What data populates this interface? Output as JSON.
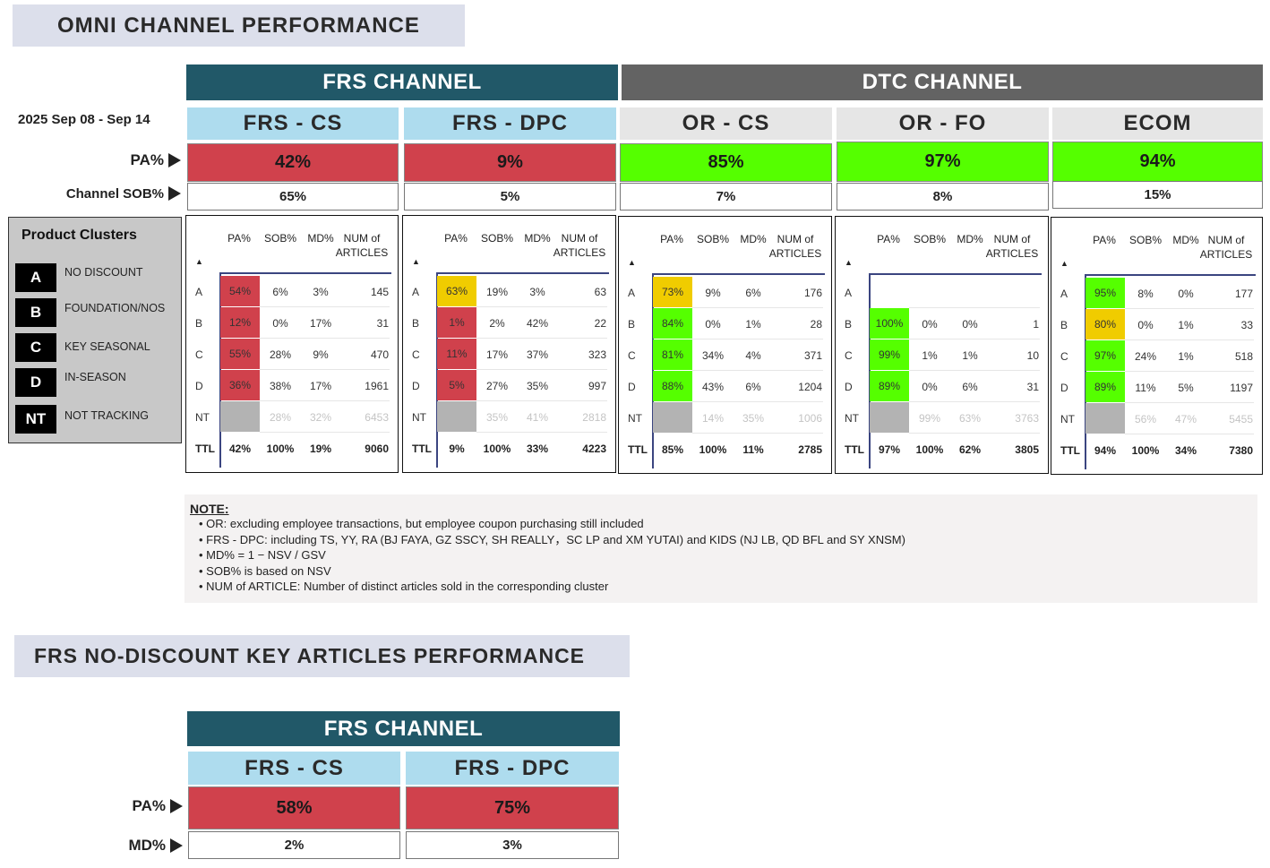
{
  "main_title": "OMNI CHANNEL PERFORMANCE",
  "date_range": "2025 Sep 08 - Sep 14",
  "row_labels": {
    "pa": "PA%",
    "sob": "Channel SOB%",
    "md": "MD%"
  },
  "colors": {
    "frs_header": "#215868",
    "dtc_header": "#636363",
    "frs_sub": "#aedcee",
    "dtc_sub": "#e6e6e6",
    "red": "#d0414c",
    "green": "#55ff00",
    "yellow": "#f0cc00",
    "grey": "#b3b3b3"
  },
  "channels": [
    {
      "name": "FRS CHANNEL"
    },
    {
      "name": "DTC CHANNEL"
    }
  ],
  "segments": [
    {
      "name": "FRS - CS",
      "pa": "42%",
      "sob": "65%"
    },
    {
      "name": "FRS - DPC",
      "pa": "9%",
      "sob": "5%"
    },
    {
      "name": "OR - CS",
      "pa": "85%",
      "sob": "7%"
    },
    {
      "name": "OR - FO",
      "pa": "97%",
      "sob": "8%"
    },
    {
      "name": "ECOM",
      "pa": "94%",
      "sob": "15%"
    }
  ],
  "table_headers": {
    "pa": "PA%",
    "sob": "SOB%",
    "md": "MD%",
    "num1": "NUM of",
    "num2": "ARTICLES",
    "sort": "▲"
  },
  "panels": [
    {
      "rows": [
        {
          "label": "A",
          "pa": "54%",
          "pa_color": "red",
          "sob": "6%",
          "md": "3%",
          "num": "145"
        },
        {
          "label": "B",
          "pa": "12%",
          "pa_color": "red",
          "sob": "0%",
          "md": "17%",
          "num": "31"
        },
        {
          "label": "C",
          "pa": "55%",
          "pa_color": "red",
          "sob": "28%",
          "md": "9%",
          "num": "470"
        },
        {
          "label": "D",
          "pa": "36%",
          "pa_color": "red",
          "sob": "38%",
          "md": "17%",
          "num": "1961"
        },
        {
          "label": "NT",
          "pa": "",
          "pa_color": "grey",
          "sob": "28%",
          "md": "32%",
          "num": "6453"
        }
      ],
      "ttl": {
        "label": "TTL",
        "pa": "42%",
        "sob": "100%",
        "md": "19%",
        "num": "9060"
      }
    },
    {
      "rows": [
        {
          "label": "A",
          "pa": "63%",
          "pa_color": "yellow",
          "sob": "19%",
          "md": "3%",
          "num": "63"
        },
        {
          "label": "B",
          "pa": "1%",
          "pa_color": "red",
          "sob": "2%",
          "md": "42%",
          "num": "22"
        },
        {
          "label": "C",
          "pa": "11%",
          "pa_color": "red",
          "sob": "17%",
          "md": "37%",
          "num": "323"
        },
        {
          "label": "D",
          "pa": "5%",
          "pa_color": "red",
          "sob": "27%",
          "md": "35%",
          "num": "997"
        },
        {
          "label": "NT",
          "pa": "",
          "pa_color": "grey",
          "sob": "35%",
          "md": "41%",
          "num": "2818"
        }
      ],
      "ttl": {
        "label": "TTL",
        "pa": "9%",
        "sob": "100%",
        "md": "33%",
        "num": "4223"
      }
    },
    {
      "rows": [
        {
          "label": "A",
          "pa": "73%",
          "pa_color": "yellow",
          "sob": "9%",
          "md": "6%",
          "num": "176"
        },
        {
          "label": "B",
          "pa": "84%",
          "pa_color": "green",
          "sob": "0%",
          "md": "1%",
          "num": "28"
        },
        {
          "label": "C",
          "pa": "81%",
          "pa_color": "green",
          "sob": "34%",
          "md": "4%",
          "num": "371"
        },
        {
          "label": "D",
          "pa": "88%",
          "pa_color": "green",
          "sob": "43%",
          "md": "6%",
          "num": "1204"
        },
        {
          "label": "NT",
          "pa": "",
          "pa_color": "grey",
          "sob": "14%",
          "md": "35%",
          "num": "1006"
        }
      ],
      "ttl": {
        "label": "TTL",
        "pa": "85%",
        "sob": "100%",
        "md": "11%",
        "num": "2785"
      }
    },
    {
      "rows": [
        {
          "label": "A",
          "pa": "",
          "pa_color": "none",
          "sob": "",
          "md": "",
          "num": ""
        },
        {
          "label": "B",
          "pa": "100%",
          "pa_color": "green",
          "sob": "0%",
          "md": "0%",
          "num": "1"
        },
        {
          "label": "C",
          "pa": "99%",
          "pa_color": "green",
          "sob": "1%",
          "md": "1%",
          "num": "10"
        },
        {
          "label": "D",
          "pa": "89%",
          "pa_color": "green",
          "sob": "0%",
          "md": "6%",
          "num": "31"
        },
        {
          "label": "NT",
          "pa": "",
          "pa_color": "grey",
          "sob": "99%",
          "md": "63%",
          "num": "3763"
        }
      ],
      "ttl": {
        "label": "TTL",
        "pa": "97%",
        "sob": "100%",
        "md": "62%",
        "num": "3805"
      }
    },
    {
      "rows": [
        {
          "label": "A",
          "pa": "95%",
          "pa_color": "green",
          "sob": "8%",
          "md": "0%",
          "num": "177"
        },
        {
          "label": "B",
          "pa": "80%",
          "pa_color": "yellow",
          "sob": "0%",
          "md": "1%",
          "num": "33"
        },
        {
          "label": "C",
          "pa": "97%",
          "pa_color": "green",
          "sob": "24%",
          "md": "1%",
          "num": "518"
        },
        {
          "label": "D",
          "pa": "89%",
          "pa_color": "green",
          "sob": "11%",
          "md": "5%",
          "num": "1197"
        },
        {
          "label": "NT",
          "pa": "",
          "pa_color": "grey",
          "sob": "56%",
          "md": "47%",
          "num": "5455"
        }
      ],
      "ttl": {
        "label": "TTL",
        "pa": "94%",
        "sob": "100%",
        "md": "34%",
        "num": "7380"
      }
    }
  ],
  "clusters": {
    "title": "Product Clusters",
    "items": [
      {
        "code": "A",
        "label": "NO DISCOUNT"
      },
      {
        "code": "B",
        "label": "FOUNDATION/NOS"
      },
      {
        "code": "C",
        "label": "KEY SEASONAL"
      },
      {
        "code": "D",
        "label": "IN-SEASON"
      },
      {
        "code": "NT",
        "label": "NOT TRACKING"
      }
    ]
  },
  "note": {
    "heading": "NOTE:",
    "lines": [
      "• OR: excluding employee transactions, but employee coupon purchasing still included",
      "• FRS - DPC: including TS, YY, RA (BJ FAYA, GZ SSCY, SH REALLY，SC LP and XM YUTAI) and KIDS (NJ LB, QD BFL and SY XNSM)",
      "• MD% = 1 − NSV / GSV",
      "• SOB% is based on NSV",
      "• NUM of ARTICLE: Number of distinct articles sold in the corresponding cluster"
    ]
  },
  "section2": {
    "title": "FRS NO-DISCOUNT KEY ARTICLES PERFORMANCE",
    "channel": "FRS CHANNEL",
    "segments": [
      {
        "name": "FRS - CS",
        "pa": "58%",
        "md": "2%"
      },
      {
        "name": "FRS - DPC",
        "pa": "75%",
        "md": "3%"
      }
    ]
  }
}
